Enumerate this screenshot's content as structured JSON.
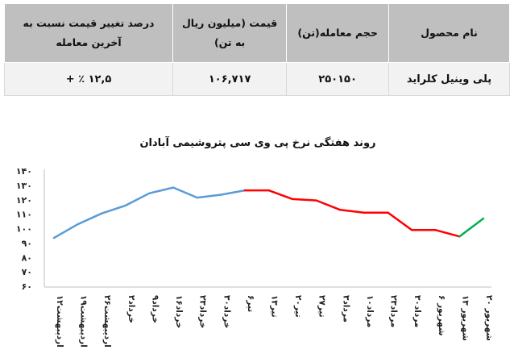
{
  "table": {
    "headers": [
      "نام محصول",
      "حجم معامله(تن)",
      "قیمت (میلیون ریال به تن)",
      "درصد تغییر قیمت نسبت به آخرین معامله"
    ],
    "rows": [
      [
        "پلی وینیل کلراید",
        "۲۵۰۱۵۰",
        "۱۰۶,۷۱۷",
        "+ ٪ ۱۲,۵"
      ]
    ]
  },
  "chart_data": {
    "type": "line",
    "title": "روند هفتگی نرخ پی وی سی پتروشیمی آبادان",
    "categories": [
      "۱۲اردیبهشت",
      "۱۹اردیبهشت",
      "۲۶اردیبهشت",
      "۲خرداد",
      "۹خرداد",
      "۱۶خرداد",
      "۲۳خرداد",
      "۳۰خرداد",
      "۶تیر",
      "۱۳تیر",
      "۲۰تیر",
      "۲۷تیر",
      "۳مرداد",
      "۱۰مرداد",
      "۲۳مرداد",
      "۳۰مرداد",
      "۶ شهریور",
      "۱۳ شهریور",
      "۲۰ شهریور"
    ],
    "values": [
      93.5,
      103,
      110.5,
      116,
      124.5,
      128.5,
      121.5,
      123.5,
      126.5,
      126.5,
      120.5,
      119.5,
      113,
      111,
      111,
      99,
      99,
      94.5,
      107
    ],
    "segments": [
      {
        "from": 0,
        "to": 8,
        "color": "#5b9bd5"
      },
      {
        "from": 8,
        "to": 17,
        "color": "#ff0000"
      },
      {
        "from": 17,
        "to": 18,
        "color": "#00b050"
      }
    ],
    "ylim": [
      60,
      140
    ],
    "yticks": [
      "۶۰",
      "۷۰",
      "۸۰",
      "۹۰",
      "۱۰۰",
      "۱۱۰",
      "۱۲۰",
      "۱۳۰",
      "۱۴۰"
    ],
    "grid": false,
    "legend": "none"
  }
}
